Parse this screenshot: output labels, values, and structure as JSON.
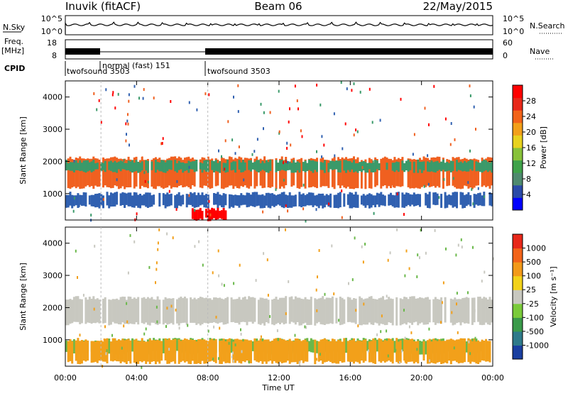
{
  "header": {
    "station": "Inuvik (fitACF)",
    "beam": "Beam 06",
    "date": "22/May/2015"
  },
  "summary": {
    "nsky_label": "N.Sky",
    "nsearch_label": "N.Search",
    "freq_label_line1": "Freq.",
    "freq_label_line2": "[MHz]",
    "nave_label": "Nave",
    "cpid_label": "CPID",
    "nsky_ticks": [
      "10^5",
      "10^0"
    ],
    "nsearch_ticks": [
      "10^5",
      "10^0"
    ],
    "freq_ticks": [
      "18",
      "8"
    ],
    "nave_ticks": [
      "60",
      "0"
    ],
    "cpid_segments": [
      {
        "label": "twofsound 3503",
        "start_h": 0,
        "end_h": 2
      },
      {
        "label": "normal (fast) 151",
        "start_h": 2,
        "end_h": 8
      },
      {
        "label": "twofsound 3503",
        "start_h": 8,
        "end_h": 24
      }
    ]
  },
  "chart_data": [
    {
      "type": "heatmap",
      "name": "power",
      "ylabel": "Slant Range [km]",
      "xlim_hours": [
        0,
        24
      ],
      "ylim": [
        180,
        4500
      ],
      "y_ticks": [
        1000,
        2000,
        3000,
        4000
      ],
      "colorbar": {
        "label": "Power [dB]",
        "ticks": [
          "28",
          "24",
          "20",
          "16",
          "12",
          "8",
          "4"
        ],
        "colors": [
          "#0000ff",
          "#2a4aa8",
          "#4e8a6e",
          "#3fa24a",
          "#88c23a",
          "#e8d21e",
          "#f2a01a",
          "#f2641a",
          "#e8281a",
          "#ff0000"
        ]
      },
      "bands": [
        {
          "range_km": [
            1200,
            2100
          ],
          "color": "#f06020"
        },
        {
          "range_km": [
            1700,
            2000
          ],
          "color": "#3a9a6a"
        },
        {
          "range_km": [
            600,
            1000
          ],
          "color": "#3060b0"
        },
        {
          "range_km": [
            200,
            500
          ],
          "color": "#ff0000"
        }
      ]
    },
    {
      "type": "heatmap",
      "name": "velocity",
      "ylabel": "Slant Range [km]",
      "xlabel": "Time UT",
      "xlim_hours": [
        0,
        24
      ],
      "ylim": [
        180,
        4500
      ],
      "x_ticks": [
        "00:00",
        "04:00",
        "08:00",
        "12:00",
        "16:00",
        "20:00",
        "00:00"
      ],
      "y_ticks": [
        1000,
        2000,
        3000,
        4000
      ],
      "colorbar": {
        "label": "Velocity [m s⁻¹]",
        "ticks": [
          "1000",
          "500",
          "100",
          "25",
          "-25",
          "-100",
          "-500",
          "-1000"
        ],
        "colors": [
          "#1a3fa0",
          "#2e7a8a",
          "#3a9a4a",
          "#7acb3a",
          "#c8c8c0",
          "#f2d21a",
          "#f29a1a",
          "#f2641a",
          "#e8281a"
        ]
      },
      "bands": [
        {
          "range_km": [
            1500,
            2300
          ],
          "color": "#c8c8c0"
        },
        {
          "range_km": [
            600,
            1000
          ],
          "color": "#6ab84a"
        },
        {
          "range_km": [
            300,
            1000
          ],
          "color": "#f2a01a"
        }
      ]
    }
  ]
}
